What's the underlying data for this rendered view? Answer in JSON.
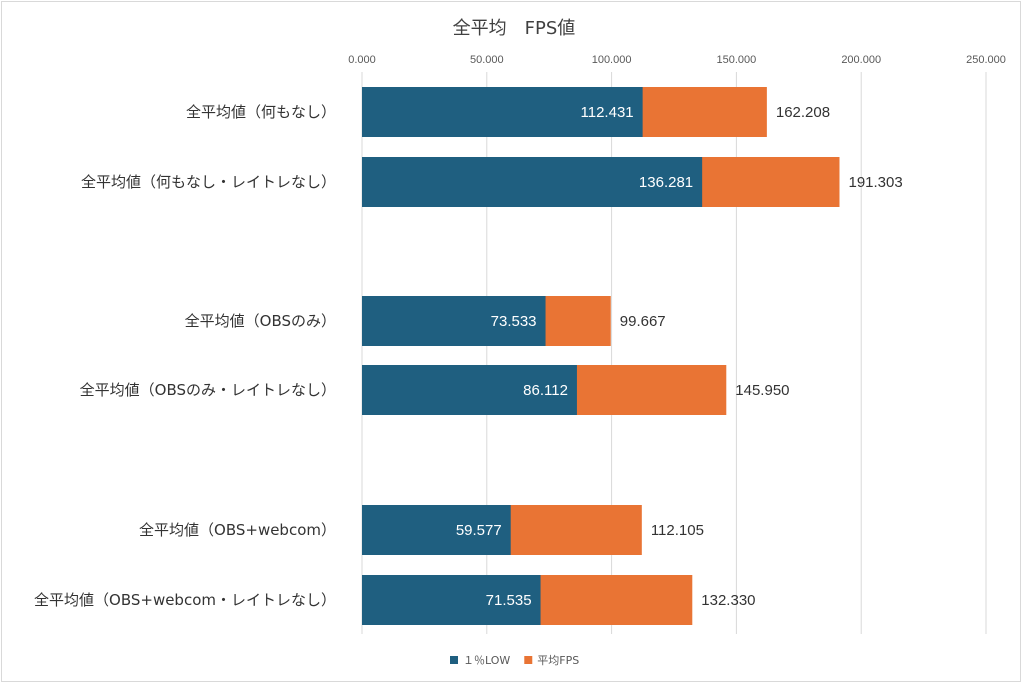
{
  "chart_data": {
    "type": "bar",
    "orientation": "horizontal",
    "stacked": false,
    "overlap": true,
    "title": "全平均　FPS値",
    "xlim": [
      0,
      250
    ],
    "x_ticks": [
      "0.000",
      "50.000",
      "100.000",
      "150.000",
      "200.000",
      "250.000"
    ],
    "x_axis_position": "top",
    "grid": "vertical",
    "legend_position": "bottom",
    "categories": [
      "全平均値（何もなし）",
      "全平均値（何もなし・レイトレなし）",
      "全平均値（OBSのみ）",
      "全平均値（OBSのみ・レイトレなし）",
      "全平均値（OBS+webcom）",
      "全平均値（OBS+webcom・レイトレなし）"
    ],
    "series": [
      {
        "name": "１％LOW",
        "color": "#1f5f80",
        "values": [
          112.431,
          136.281,
          73.533,
          86.112,
          59.577,
          71.535
        ],
        "labels": [
          "112.431",
          "136.281",
          "73.533",
          "86.112",
          "59.577",
          "71.535"
        ]
      },
      {
        "name": "平均FPS",
        "color": "#e97434",
        "values": [
          162.208,
          191.303,
          99.667,
          145.95,
          112.105,
          132.33
        ],
        "labels": [
          "162.208",
          "191.303",
          "99.667",
          "145.950",
          "112.105",
          "132.330"
        ]
      }
    ]
  }
}
